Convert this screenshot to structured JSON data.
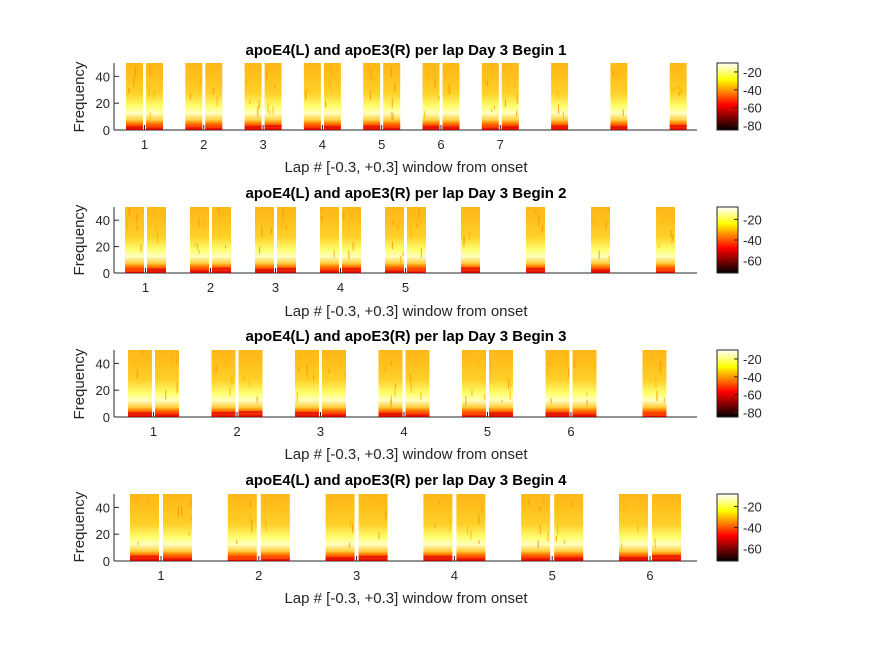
{
  "chart_data": [
    {
      "type": "heatmap",
      "title": "apoE4(L) and apoE3(R) per lap Day 3 Begin 1",
      "xlabel": "Lap # [-0.3, +0.3] window from onset",
      "ylabel": "Frequency",
      "xticks": [
        "1",
        "2",
        "3",
        "4",
        "5",
        "6",
        "7"
      ],
      "yticks": [
        0,
        20,
        40
      ],
      "ylim": [
        0,
        50
      ],
      "pairs": 7,
      "singles": 3,
      "colorbar_ticks": [
        -20,
        -40,
        -60,
        -80
      ],
      "colorbar_range": [
        -85,
        -10
      ]
    },
    {
      "type": "heatmap",
      "title": "apoE4(L) and apoE3(R) per lap Day 3 Begin 2",
      "xlabel": "Lap # [-0.3, +0.3] window from onset",
      "ylabel": "Frequency",
      "xticks": [
        "1",
        "2",
        "3",
        "4",
        "5"
      ],
      "yticks": [
        0,
        20,
        40
      ],
      "ylim": [
        0,
        50
      ],
      "pairs": 5,
      "singles": 4,
      "colorbar_ticks": [
        -20,
        -40,
        -60
      ],
      "colorbar_range": [
        -72,
        -8
      ]
    },
    {
      "type": "heatmap",
      "title": "apoE4(L) and apoE3(R) per lap Day 3 Begin 3",
      "xlabel": "Lap # [-0.3, +0.3] window from onset",
      "ylabel": "Frequency",
      "xticks": [
        "1",
        "2",
        "3",
        "4",
        "5",
        "6"
      ],
      "yticks": [
        0,
        20,
        40
      ],
      "ylim": [
        0,
        50
      ],
      "pairs": 6,
      "singles": 1,
      "colorbar_ticks": [
        -20,
        -40,
        -60,
        -80
      ],
      "colorbar_range": [
        -85,
        -10
      ]
    },
    {
      "type": "heatmap",
      "title": "apoE4(L) and apoE3(R) per lap Day 3 Begin 4",
      "xlabel": "Lap # [-0.3, +0.3] window from onset",
      "ylabel": "Frequency",
      "xticks": [
        "1",
        "2",
        "3",
        "4",
        "5",
        "6"
      ],
      "yticks": [
        0,
        20,
        40
      ],
      "ylim": [
        0,
        50
      ],
      "pairs": 6,
      "singles": 0,
      "colorbar_ticks": [
        -20,
        -40,
        -60
      ],
      "colorbar_range": [
        -72,
        -8
      ]
    }
  ],
  "colors": {
    "axis": "#262626",
    "colormap": "hot"
  }
}
